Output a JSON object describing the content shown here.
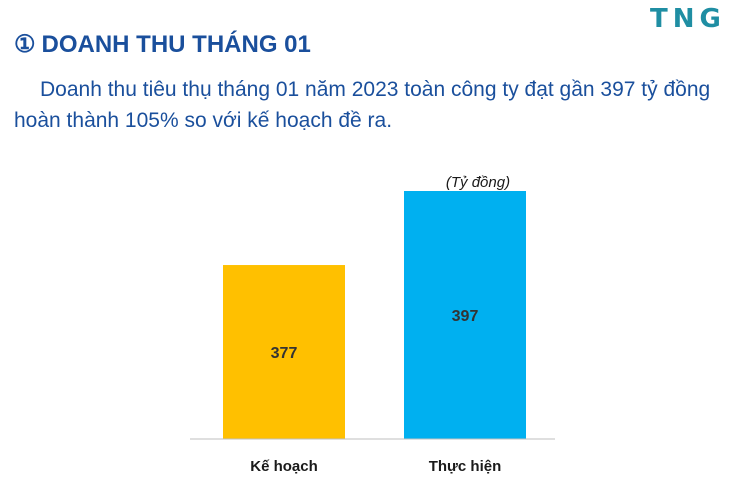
{
  "header": {
    "logo_text": "TNG",
    "title_number": "①",
    "title": "DOANH THU THÁNG 01",
    "summary": "Doanh thu tiêu thụ tháng 01 năm 2023 toàn công ty đạt gần 397 tỷ đồng hoàn thành 105% so với kế hoạch đề ra."
  },
  "colors": {
    "title": "#1a4f9c",
    "logo": "#1f8ea3",
    "plan_bar": "#ffc000",
    "actual_bar": "#00b0f0",
    "axis": "#bfbfbf"
  },
  "chart_data": {
    "type": "bar",
    "unit_label": "(Tỷ đồng)",
    "categories": [
      "Kế hoạch",
      "Thực hiện"
    ],
    "values": [
      377,
      397
    ],
    "colors": [
      "#ffc000",
      "#00b0f0"
    ],
    "ylim": [
      330,
      397
    ],
    "grid": false,
    "legend": "none"
  }
}
